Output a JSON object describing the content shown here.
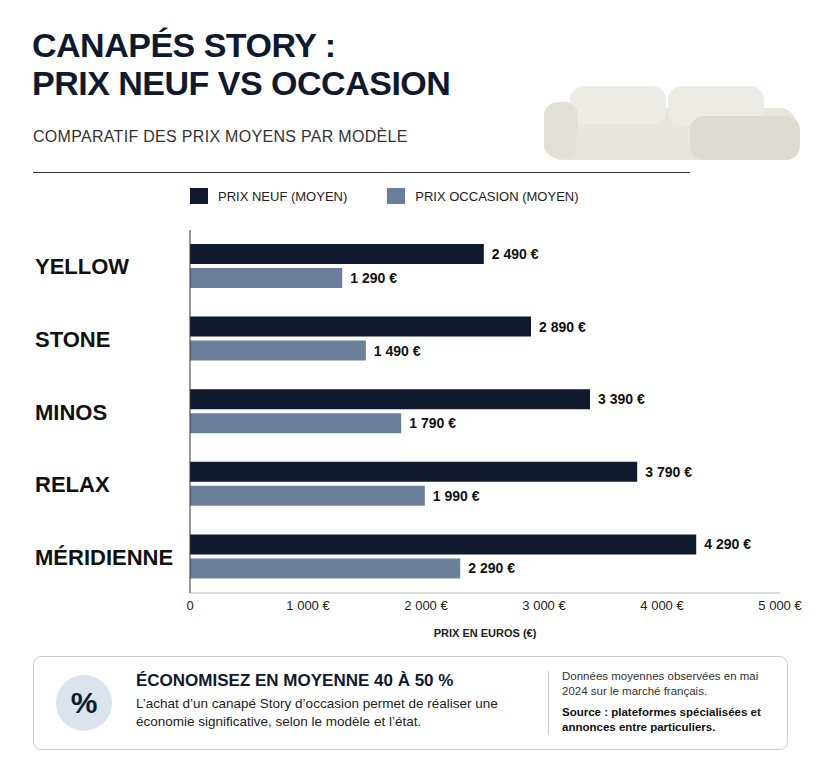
{
  "chart_data": {
    "type": "bar",
    "orientation": "horizontal",
    "title": "CANAPÉS STORY : PRIX NEUF VS OCCASION",
    "subtitle": "COMPARATIF DES PRIX MOYENS PAR MODÈLE",
    "categories": [
      "YELLOW",
      "STONE",
      "MINOS",
      "RELAX",
      "MÉRIDIENNE"
    ],
    "series": [
      {
        "name": "PRIX NEUF (MOYEN)",
        "color": "#0f1a2e",
        "values": [
          2490,
          2890,
          3390,
          3790,
          4290
        ],
        "value_labels": [
          "2 490 €",
          "2 890 €",
          "3 390 €",
          "3 790 €",
          "4 290 €"
        ]
      },
      {
        "name": "PRIX OCCASION (MOYEN)",
        "color": "#6b7f9a",
        "values": [
          1290,
          1490,
          1790,
          1990,
          2290
        ],
        "value_labels": [
          "1 290 €",
          "1 490 €",
          "1 790 €",
          "1 990 €",
          "2 290 €"
        ]
      }
    ],
    "x_label": "PRIX EN EUROS (€)",
    "xlim": [
      0,
      5000
    ],
    "xticks": [
      0,
      {
        "value": 1000,
        "label": "1 000 €"
      },
      {
        "value": 2000,
        "label": "2 000 €"
      },
      {
        "value": 3000,
        "label": "3 000 €"
      },
      {
        "value": 4000,
        "label": "4 000 €"
      },
      {
        "value": 5000,
        "label": "5 000 €"
      }
    ],
    "grid": false,
    "legend": "top",
    "data_labels": true
  },
  "footer": {
    "icon": "%",
    "heading": "ÉCONOMISEZ EN MOYENNE 40 À 50 %",
    "text": "L’achat d’un canapé Story d’occasion permet de réaliser une économie significative, selon le modèle et l’état.",
    "note": "Données moyennes observées en mai 2024 sur le marché français.",
    "source": "Source : plateformes spécialisées et annonces entre particuliers."
  }
}
